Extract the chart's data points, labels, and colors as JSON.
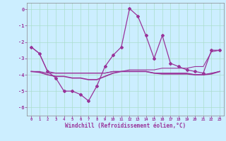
{
  "xlabel": "Windchill (Refroidissement éolien,°C)",
  "ylabel": "",
  "bg_color": "#cceeff",
  "grid_color": "#aaddcc",
  "line_color": "#993399",
  "x_ticks": [
    0,
    1,
    2,
    3,
    4,
    5,
    6,
    7,
    8,
    9,
    10,
    11,
    12,
    13,
    14,
    15,
    16,
    17,
    18,
    19,
    20,
    21,
    22,
    23
  ],
  "y_ticks": [
    0,
    -1,
    -2,
    -3,
    -4,
    -5,
    -6
  ],
  "ylim": [
    -6.5,
    0.4
  ],
  "xlim": [
    -0.5,
    23.5
  ],
  "series": [
    {
      "x": [
        0,
        1,
        2,
        3,
        4,
        5,
        6,
        7,
        8,
        9,
        10,
        11,
        12,
        13,
        14,
        15,
        16,
        17,
        18,
        19,
        20,
        21,
        22,
        23
      ],
      "y": [
        -2.3,
        -2.7,
        -3.8,
        -3.9,
        -3.9,
        -3.9,
        -3.9,
        -3.9,
        -3.9,
        -3.9,
        -3.8,
        -3.8,
        -3.7,
        -3.7,
        -3.7,
        -3.7,
        -3.6,
        -3.6,
        -3.6,
        -3.6,
        -3.5,
        -3.5,
        -2.6,
        -2.5
      ],
      "marker": false,
      "linewidth": 0.8
    },
    {
      "x": [
        0,
        1,
        2,
        3,
        4,
        5,
        6,
        7,
        8,
        9,
        10,
        11,
        12,
        13,
        14,
        15,
        16,
        17,
        18,
        19,
        20,
        21,
        22,
        23
      ],
      "y": [
        -3.8,
        -3.8,
        -3.9,
        -3.9,
        -3.9,
        -3.9,
        -3.9,
        -3.9,
        -3.9,
        -3.9,
        -3.8,
        -3.8,
        -3.8,
        -3.8,
        -3.8,
        -3.9,
        -3.9,
        -3.9,
        -3.9,
        -3.9,
        -4.0,
        -4.0,
        -3.9,
        -3.8
      ],
      "marker": false,
      "linewidth": 0.8
    },
    {
      "x": [
        0,
        1,
        2,
        3,
        4,
        5,
        6,
        7,
        8,
        9,
        10,
        11,
        12,
        13,
        14,
        15,
        16,
        17,
        18,
        19,
        20,
        21,
        22,
        23
      ],
      "y": [
        -2.3,
        -2.7,
        -3.8,
        -4.2,
        -5.0,
        -5.0,
        -5.2,
        -5.6,
        -4.7,
        -3.5,
        -2.8,
        -2.3,
        0.05,
        -0.4,
        -1.6,
        -3.0,
        -1.6,
        -3.3,
        -3.5,
        -3.7,
        -3.8,
        -3.9,
        -2.5,
        -2.5
      ],
      "marker": true,
      "linewidth": 0.9
    },
    {
      "x": [
        0,
        1,
        2,
        3,
        4,
        5,
        6,
        7,
        8,
        9,
        10,
        11,
        12,
        13,
        14,
        15,
        16,
        17,
        18,
        19,
        20,
        21,
        22,
        23
      ],
      "y": [
        -3.8,
        -3.85,
        -4.0,
        -4.1,
        -4.1,
        -4.2,
        -4.2,
        -4.3,
        -4.3,
        -4.1,
        -3.9,
        -3.8,
        -3.8,
        -3.8,
        -3.8,
        -3.9,
        -3.95,
        -3.95,
        -3.95,
        -3.95,
        -4.0,
        -4.0,
        -3.95,
        -3.8
      ],
      "marker": false,
      "linewidth": 1.2
    }
  ]
}
